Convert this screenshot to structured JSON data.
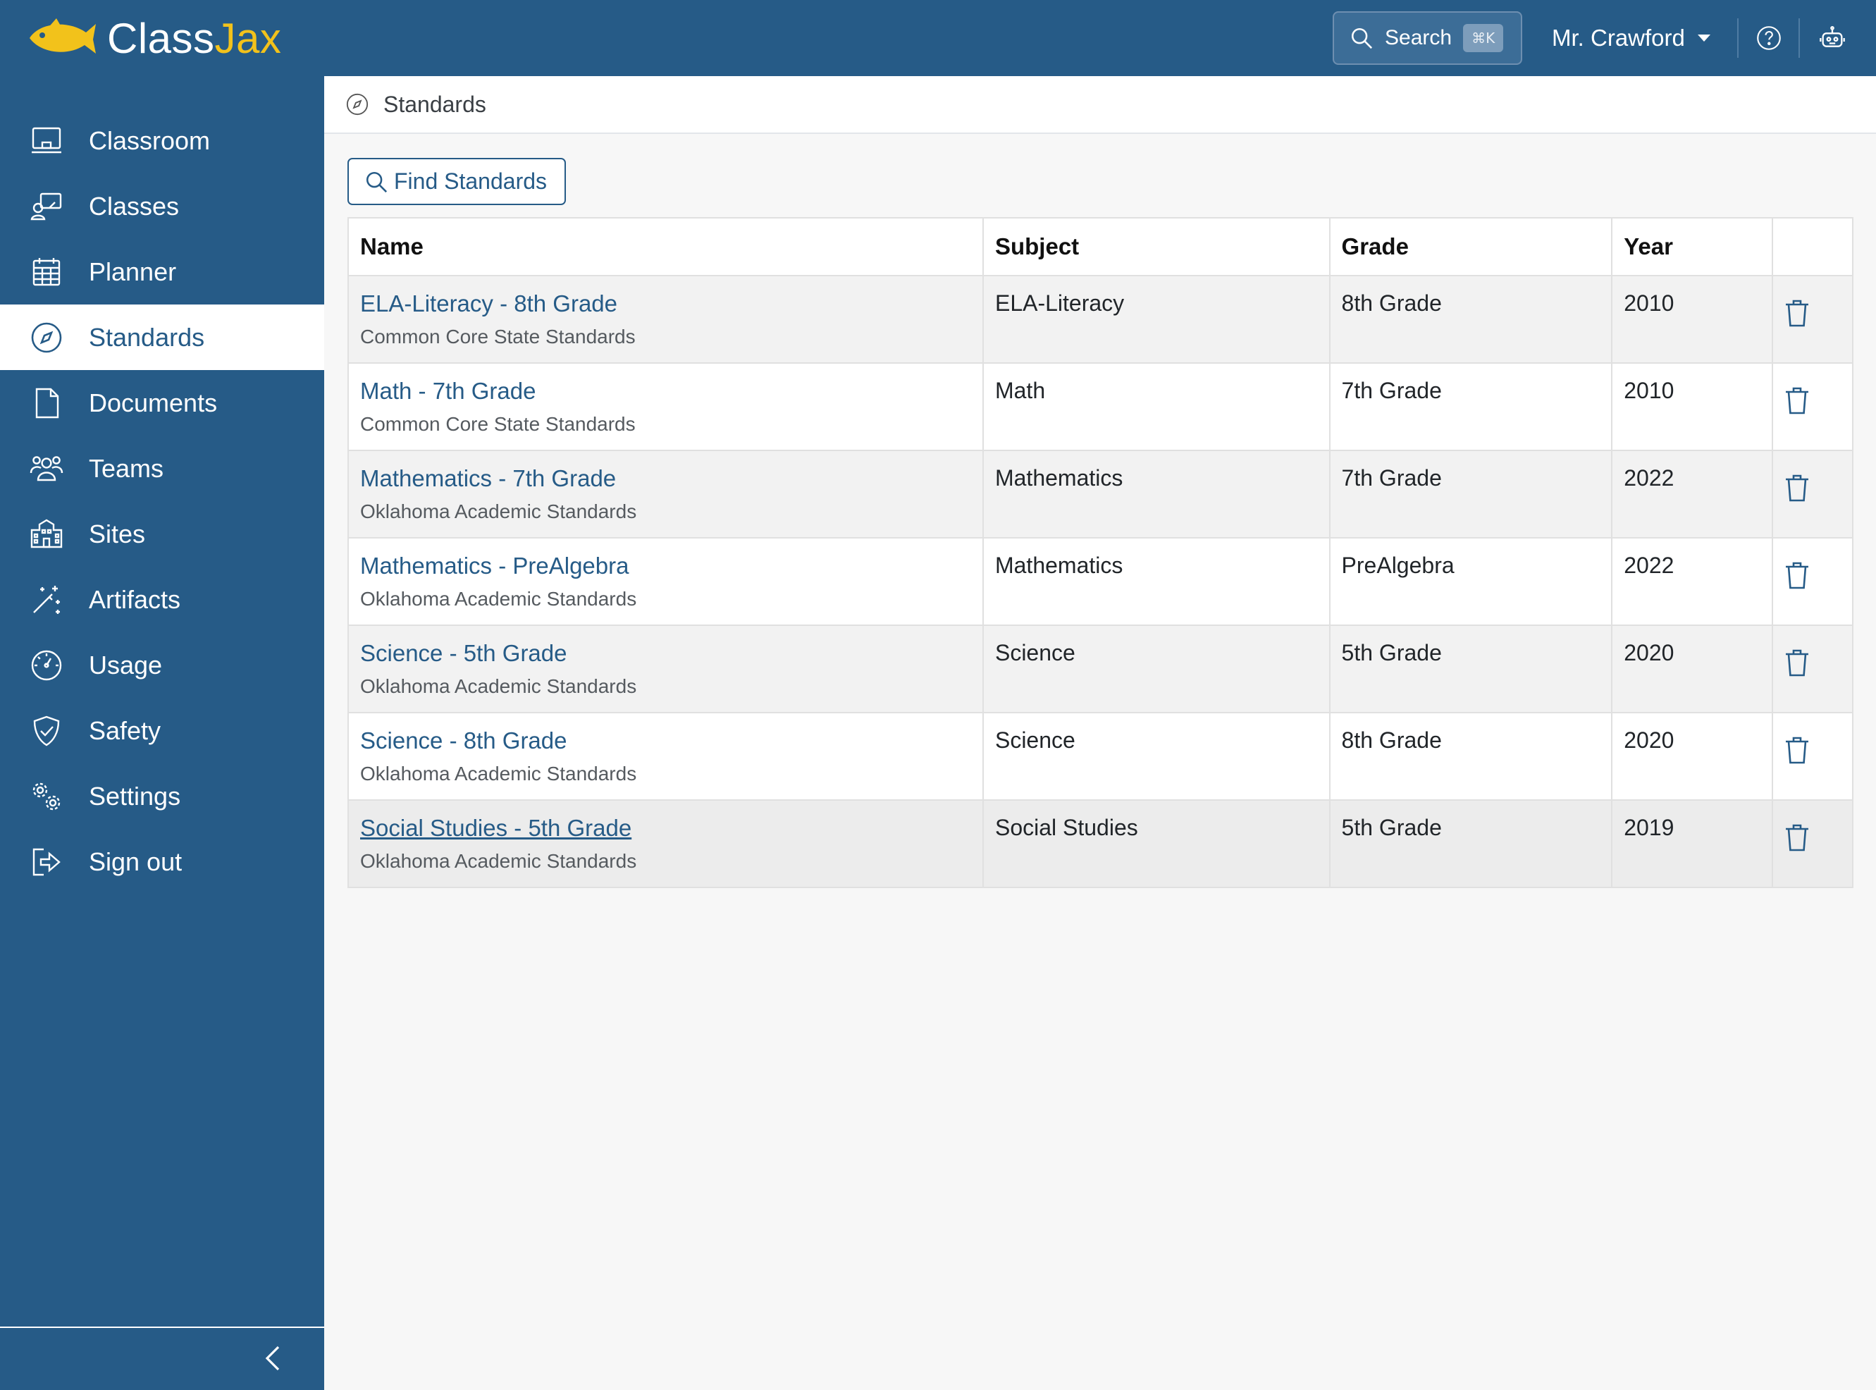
{
  "brand": {
    "name_part1": "Class",
    "name_part2": "Jax"
  },
  "header": {
    "search_label": "Search",
    "search_shortcut": "⌘K",
    "user_name": "Mr. Crawford"
  },
  "sidebar": {
    "items": [
      {
        "label": "Classroom",
        "icon": "classroom-icon"
      },
      {
        "label": "Classes",
        "icon": "classes-icon"
      },
      {
        "label": "Planner",
        "icon": "planner-icon"
      },
      {
        "label": "Standards",
        "icon": "compass-icon",
        "active": true
      },
      {
        "label": "Documents",
        "icon": "document-icon"
      },
      {
        "label": "Teams",
        "icon": "teams-icon"
      },
      {
        "label": "Sites",
        "icon": "building-icon"
      },
      {
        "label": "Artifacts",
        "icon": "magic-wand-icon"
      },
      {
        "label": "Usage",
        "icon": "speedometer-icon"
      },
      {
        "label": "Safety",
        "icon": "shield-check-icon"
      },
      {
        "label": "Settings",
        "icon": "gears-icon"
      },
      {
        "label": "Sign out",
        "icon": "sign-out-icon"
      }
    ]
  },
  "breadcrumb": {
    "current": "Standards"
  },
  "toolbar": {
    "find_standards_label": "Find Standards"
  },
  "table": {
    "headers": {
      "name": "Name",
      "subject": "Subject",
      "grade": "Grade",
      "year": "Year"
    },
    "rows": [
      {
        "name": "ELA-Literacy - 8th Grade",
        "source": "Common Core State Standards",
        "subject": "ELA-Literacy",
        "grade": "8th Grade",
        "year": "2010"
      },
      {
        "name": "Math - 7th Grade",
        "source": "Common Core State Standards",
        "subject": "Math",
        "grade": "7th Grade",
        "year": "2010"
      },
      {
        "name": "Mathematics - 7th Grade",
        "source": "Oklahoma Academic Standards",
        "subject": "Mathematics",
        "grade": "7th Grade",
        "year": "2022"
      },
      {
        "name": "Mathematics - PreAlgebra",
        "source": "Oklahoma Academic Standards",
        "subject": "Mathematics",
        "grade": "PreAlgebra",
        "year": "2022"
      },
      {
        "name": "Science - 5th Grade",
        "source": "Oklahoma Academic Standards",
        "subject": "Science",
        "grade": "5th Grade",
        "year": "2020"
      },
      {
        "name": "Science - 8th Grade",
        "source": "Oklahoma Academic Standards",
        "subject": "Science",
        "grade": "8th Grade",
        "year": "2020"
      },
      {
        "name": "Social Studies - 5th Grade",
        "source": "Oklahoma Academic Standards",
        "subject": "Social Studies",
        "grade": "5th Grade",
        "year": "2019"
      }
    ]
  },
  "colors": {
    "primary": "#265b87",
    "accent": "#f2c21b",
    "row_alt": "#f2f2f2"
  }
}
